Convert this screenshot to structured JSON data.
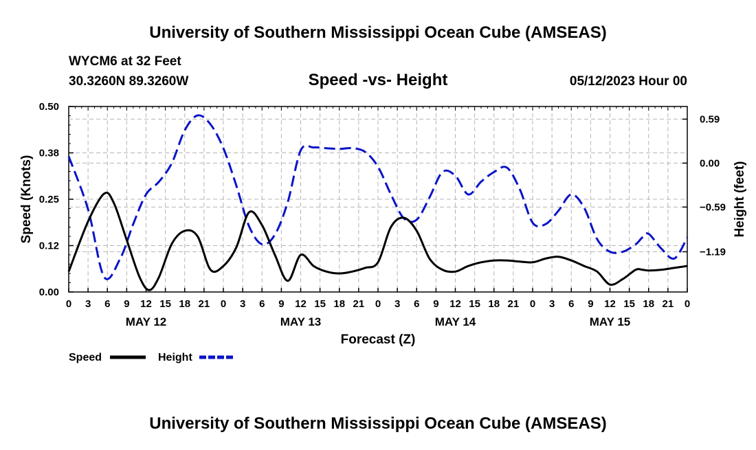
{
  "header": {
    "title_top": "University of Southern Mississippi Ocean Cube (AMSEAS)",
    "station": "WYCM6 at 32 Feet",
    "coords": "30.3260N  89.3260W",
    "chart_title": "Speed -vs- Height",
    "run_time": "05/12/2023 Hour 00"
  },
  "footer": {
    "title_bottom": "University of Southern Mississippi Ocean Cube (AMSEAS)"
  },
  "chart_data": {
    "type": "line",
    "title": "Speed -vs- Height",
    "xlabel": "Forecast (Z)",
    "ylabel": "Speed (Knots)",
    "y2label": "Height (feet)",
    "x_range_hours": [
      0,
      96
    ],
    "x_tick_step_hours": 3,
    "x_tick_labels": [
      "0",
      "3",
      "6",
      "9",
      "12",
      "15",
      "18",
      "21",
      "0",
      "3",
      "6",
      "9",
      "12",
      "15",
      "18",
      "21",
      "0",
      "3",
      "6",
      "9",
      "12",
      "15",
      "18",
      "21",
      "0",
      "3",
      "6",
      "9",
      "12",
      "15",
      "18",
      "21",
      "0"
    ],
    "day_labels": [
      {
        "hour": 12,
        "label": "MAY 12"
      },
      {
        "hour": 36,
        "label": "MAY 13"
      },
      {
        "hour": 60,
        "label": "MAY 14"
      },
      {
        "hour": 84,
        "label": "MAY 15"
      }
    ],
    "ylim": [
      0,
      0.5
    ],
    "y_ticks": [
      0.0,
      0.125,
      0.25,
      0.375,
      0.5
    ],
    "y_tick_labels": [
      "0.00",
      "0.12",
      "0.25",
      "0.38",
      "0.50"
    ],
    "y2lim": [
      -1.73,
      0.76
    ],
    "y2_ticks": [
      0.59,
      0.0,
      -0.59,
      -1.19
    ],
    "y2_tick_labels": [
      "0.59",
      "0.00",
      "−0.59",
      "−1.19"
    ],
    "grid": true,
    "legend": [
      "Speed",
      "Height"
    ],
    "series": [
      {
        "name": "Speed",
        "axis": "left",
        "color": "#000000",
        "dash": "solid",
        "x": [
          0,
          3,
          5.5,
          7,
          9,
          11,
          12.5,
          14,
          16,
          18,
          20,
          22,
          24,
          26,
          28,
          30,
          32,
          34,
          36,
          38,
          40,
          42,
          44,
          46,
          48,
          50,
          52,
          54,
          56,
          58,
          60,
          62,
          64,
          66,
          68,
          70,
          72,
          74,
          76,
          78,
          80,
          82,
          84,
          86,
          88,
          89,
          90,
          92,
          94,
          96
        ],
        "y": [
          0.055,
          0.19,
          0.265,
          0.24,
          0.14,
          0.04,
          0.005,
          0.04,
          0.13,
          0.165,
          0.15,
          0.06,
          0.07,
          0.12,
          0.215,
          0.18,
          0.1,
          0.03,
          0.1,
          0.07,
          0.055,
          0.05,
          0.055,
          0.065,
          0.08,
          0.175,
          0.2,
          0.165,
          0.09,
          0.06,
          0.055,
          0.07,
          0.08,
          0.085,
          0.085,
          0.082,
          0.08,
          0.09,
          0.095,
          0.085,
          0.07,
          0.055,
          0.02,
          0.035,
          0.06,
          0.06,
          0.058,
          0.06,
          0.065,
          0.07
        ]
      },
      {
        "name": "Height",
        "axis": "right",
        "color": "#0a14c8",
        "dash": "dashed",
        "x": [
          0,
          3,
          5.5,
          8,
          10,
          12,
          14,
          16,
          18,
          20,
          22,
          24,
          26,
          28,
          30,
          32,
          34,
          36,
          38,
          40,
          42,
          44,
          46,
          48,
          50,
          52,
          54,
          56,
          58,
          60,
          62,
          64,
          66,
          68,
          70,
          72,
          74,
          76,
          78,
          80,
          82,
          84,
          86,
          88,
          89,
          90,
          92,
          94,
          96
        ],
        "y": [
          0.09,
          -0.62,
          -1.53,
          -1.28,
          -0.82,
          -0.42,
          -0.25,
          0.0,
          0.44,
          0.64,
          0.52,
          0.2,
          -0.3,
          -0.85,
          -1.09,
          -0.96,
          -0.52,
          0.17,
          0.21,
          0.2,
          0.19,
          0.2,
          0.15,
          -0.05,
          -0.42,
          -0.74,
          -0.76,
          -0.46,
          -0.12,
          -0.17,
          -0.42,
          -0.25,
          -0.12,
          -0.06,
          -0.35,
          -0.8,
          -0.82,
          -0.64,
          -0.42,
          -0.6,
          -1.02,
          -1.19,
          -1.19,
          -1.09,
          -1.0,
          -0.95,
          -1.15,
          -1.28,
          -1.0
        ]
      }
    ]
  }
}
